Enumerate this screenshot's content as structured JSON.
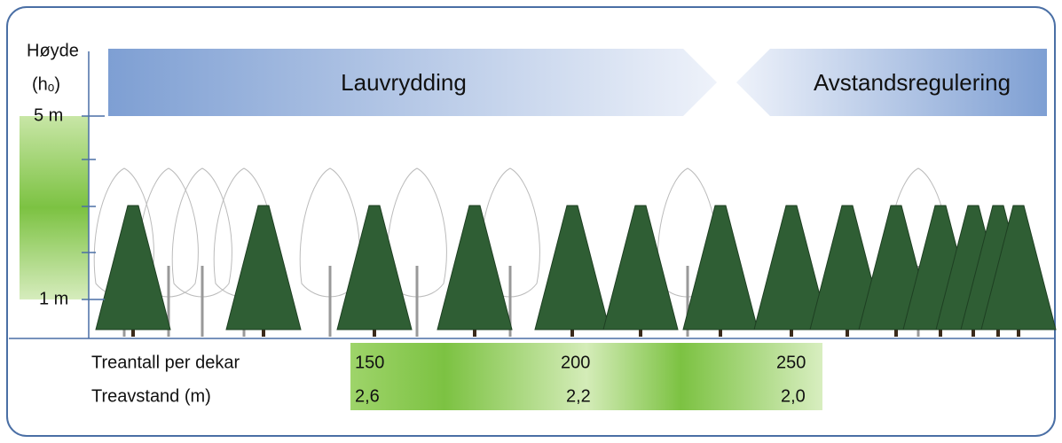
{
  "axis": {
    "label": "Høyde",
    "unit": "(hₒ)",
    "ticks": [
      "5 m",
      "1 m"
    ]
  },
  "phases": [
    "Lauvrydding",
    "Avstandsregulering"
  ],
  "table": {
    "rows": [
      [
        "Treantall per dekar",
        150,
        200,
        250
      ],
      [
        "Treavstand (m)",
        "2,6",
        "2,2",
        "2,0"
      ]
    ]
  }
}
